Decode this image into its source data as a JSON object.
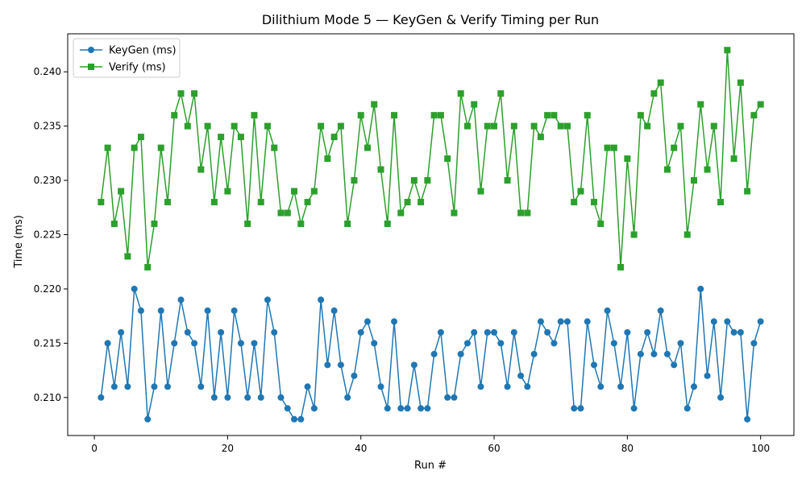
{
  "chart_data": {
    "type": "line",
    "title": "Dilithium Mode 5 — KeyGen & Verify Timing per Run",
    "xlabel": "Run #",
    "ylabel": "Time (ms)",
    "xlim": [
      -4,
      105
    ],
    "ylim": [
      0.2065,
      0.2435
    ],
    "xticks": [
      0,
      20,
      40,
      60,
      80,
      100
    ],
    "yticks": [
      0.21,
      0.215,
      0.22,
      0.225,
      0.23,
      0.235,
      0.24
    ],
    "ytick_labels": [
      "0.210",
      "0.215",
      "0.220",
      "0.225",
      "0.230",
      "0.235",
      "0.240"
    ],
    "legend_position": "top-left",
    "grid": false,
    "series": [
      {
        "name": "KeyGen (ms)",
        "color": "#1f77b4",
        "marker": "circle",
        "values": [
          0.21,
          0.215,
          0.211,
          0.216,
          0.211,
          0.22,
          0.218,
          0.208,
          0.211,
          0.218,
          0.211,
          0.215,
          0.219,
          0.216,
          0.215,
          0.211,
          0.218,
          0.21,
          0.216,
          0.21,
          0.218,
          0.215,
          0.21,
          0.215,
          0.21,
          0.219,
          0.216,
          0.21,
          0.209,
          0.208,
          0.208,
          0.211,
          0.209,
          0.219,
          0.213,
          0.218,
          0.213,
          0.21,
          0.212,
          0.216,
          0.217,
          0.215,
          0.211,
          0.209,
          0.217,
          0.209,
          0.209,
          0.213,
          0.209,
          0.209,
          0.214,
          0.216,
          0.21,
          0.21,
          0.214,
          0.215,
          0.216,
          0.211,
          0.216,
          0.216,
          0.215,
          0.211,
          0.216,
          0.212,
          0.211,
          0.214,
          0.217,
          0.216,
          0.215,
          0.217,
          0.217,
          0.209,
          0.209,
          0.217,
          0.213,
          0.211,
          0.218,
          0.215,
          0.211,
          0.216,
          0.209,
          0.214,
          0.216,
          0.214,
          0.218,
          0.214,
          0.213,
          0.215,
          0.209,
          0.211,
          0.22,
          0.212,
          0.217,
          0.21,
          0.217,
          0.216,
          0.216,
          0.208,
          0.215,
          0.217
        ]
      },
      {
        "name": "Verify (ms)",
        "color": "#2ca02c",
        "marker": "square",
        "values": [
          0.228,
          0.233,
          0.226,
          0.229,
          0.223,
          0.233,
          0.234,
          0.222,
          0.226,
          0.233,
          0.228,
          0.236,
          0.238,
          0.235,
          0.238,
          0.231,
          0.235,
          0.228,
          0.234,
          0.229,
          0.235,
          0.234,
          0.226,
          0.236,
          0.228,
          0.235,
          0.233,
          0.227,
          0.227,
          0.229,
          0.226,
          0.228,
          0.229,
          0.235,
          0.232,
          0.234,
          0.235,
          0.226,
          0.23,
          0.236,
          0.233,
          0.237,
          0.231,
          0.226,
          0.236,
          0.227,
          0.228,
          0.23,
          0.228,
          0.23,
          0.236,
          0.236,
          0.232,
          0.227,
          0.238,
          0.235,
          0.237,
          0.229,
          0.235,
          0.235,
          0.238,
          0.23,
          0.235,
          0.227,
          0.227,
          0.235,
          0.234,
          0.236,
          0.236,
          0.235,
          0.235,
          0.228,
          0.229,
          0.236,
          0.228,
          0.226,
          0.233,
          0.233,
          0.222,
          0.232,
          0.225,
          0.236,
          0.235,
          0.238,
          0.239,
          0.231,
          0.233,
          0.235,
          0.225,
          0.23,
          0.237,
          0.231,
          0.235,
          0.228,
          0.242,
          0.232,
          0.239,
          0.229,
          0.236,
          0.237
        ]
      }
    ]
  }
}
